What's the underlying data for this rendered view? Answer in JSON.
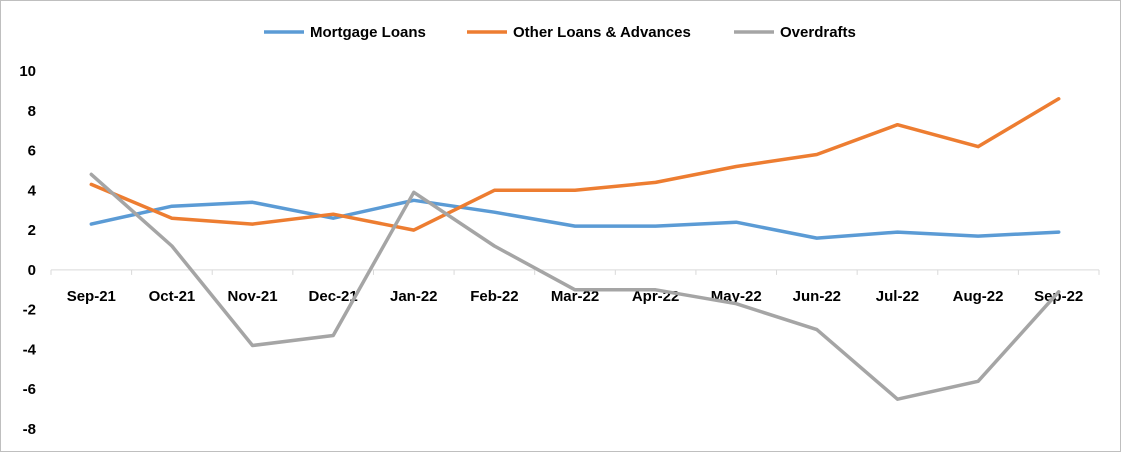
{
  "chart_data": {
    "type": "line",
    "title": "",
    "xlabel": "",
    "ylabel": "",
    "categories": [
      "Sep-21",
      "Oct-21",
      "Nov-21",
      "Dec-21",
      "Jan-22",
      "Feb-22",
      "Mar-22",
      "Apr-22",
      "May-22",
      "Jun-22",
      "Jul-22",
      "Aug-22",
      "Sep-22"
    ],
    "ylim": [
      -8,
      10
    ],
    "yticks": [
      -8,
      -6,
      -4,
      -2,
      0,
      2,
      4,
      6,
      8,
      10
    ],
    "grid": false,
    "legend_position": "top",
    "series": [
      {
        "name": "Mortgage Loans",
        "color": "#5b9bd5",
        "values": [
          2.3,
          3.2,
          3.4,
          2.6,
          3.5,
          2.9,
          2.2,
          2.2,
          2.4,
          1.6,
          1.9,
          1.7,
          1.9
        ]
      },
      {
        "name": "Other Loans & Advances",
        "color": "#ed7d31",
        "values": [
          4.3,
          2.6,
          2.3,
          2.8,
          2.0,
          4.0,
          4.0,
          4.4,
          5.2,
          5.8,
          7.3,
          6.2,
          8.6
        ]
      },
      {
        "name": "Overdrafts",
        "color": "#a5a5a5",
        "values": [
          4.8,
          1.2,
          -3.8,
          -3.3,
          3.9,
          1.2,
          -1.0,
          -1.0,
          -1.7,
          -3.0,
          -6.5,
          -5.6,
          -1.1
        ]
      }
    ]
  }
}
